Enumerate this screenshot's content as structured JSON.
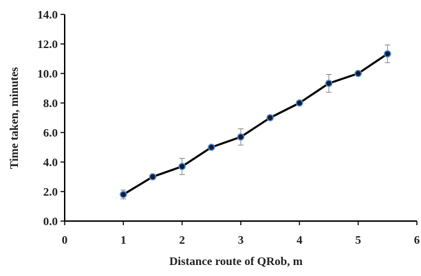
{
  "chart_data": {
    "type": "line",
    "xlabel": "Distance route of QRob, m",
    "ylabel": "Time taken,  minutes",
    "xlim": [
      0,
      6
    ],
    "ylim": [
      0,
      14
    ],
    "x_ticks": [
      "0",
      "1",
      "2",
      "3",
      "4",
      "5",
      "6"
    ],
    "y_ticks": [
      "0.0",
      "2.0",
      "4.0",
      "6.0",
      "8.0",
      "10.0",
      "12.0",
      "14.0"
    ],
    "grid": false,
    "series": [
      {
        "x": [
          1,
          1.5,
          2,
          2.5,
          3,
          3.5,
          4,
          4.5,
          5,
          5.5
        ],
        "y": [
          1.8,
          3.0,
          3.7,
          5.0,
          5.7,
          7.0,
          8.0,
          9.33,
          10.0,
          11.33
        ],
        "error": [
          0.3,
          0,
          0.55,
          0,
          0.55,
          0,
          0,
          0.6,
          0,
          0.6
        ],
        "line_color": "#000000",
        "marker_color": "#1a1a2e",
        "marker_edge": "#4a90d9",
        "error_color": "#808080"
      }
    ]
  }
}
